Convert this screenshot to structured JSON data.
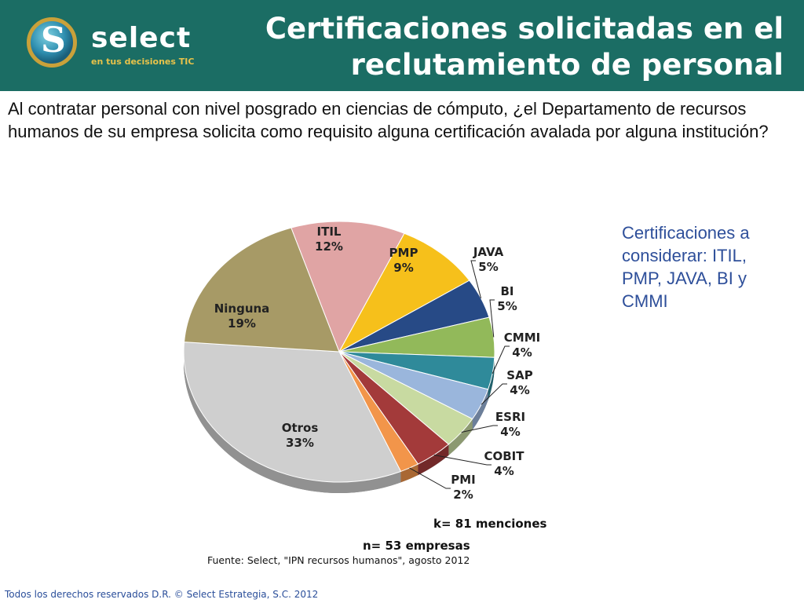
{
  "header": {
    "logo_word": "select",
    "logo_tag": "en tus decisiones",
    "logo_tag_accent": "TIC",
    "title_line1": "Certificaciones solicitadas en el",
    "title_line2": "reclutamiento de personal"
  },
  "question": "Al contratar personal con nivel posgrado en ciencias de cómputo, ¿el Departamento de recursos humanos de su empresa solicita como requisito alguna certificación avalada por alguna institución?",
  "side_note": "Certificaciones a considerar: ITIL, PMP, JAVA, BI y CMMI",
  "k_note": "k= 81 menciones",
  "n_note": "n= 53 empresas",
  "source": "Fuente: Select, \"IPN recursos humanos\", agosto 2012",
  "footer": "Todos los derechos reservados D.R. © Select Estrategia, S.C. 2012",
  "colors": {
    "header_bg": "#1b6d64",
    "side_note": "#2e4f9a"
  },
  "chart_data": {
    "type": "pie",
    "title": "",
    "slices": [
      {
        "label": "ITIL",
        "value": 12,
        "display": "12%",
        "color": "#e0a4a4"
      },
      {
        "label": "PMP",
        "value": 9,
        "display": "9%",
        "color": "#f6c01b"
      },
      {
        "label": "JAVA",
        "value": 5,
        "display": "5%",
        "color": "#274a86"
      },
      {
        "label": "BI",
        "value": 5,
        "display": "5%",
        "color": "#92b95a"
      },
      {
        "label": "CMMI",
        "value": 4,
        "display": "4%",
        "color": "#2f8a9a"
      },
      {
        "label": "SAP",
        "value": 4,
        "display": "4%",
        "color": "#9ab6dc"
      },
      {
        "label": "ESRI",
        "value": 4,
        "display": "4%",
        "color": "#c8daa1"
      },
      {
        "label": "COBIT",
        "value": 4,
        "display": "4%",
        "color": "#a33a3a"
      },
      {
        "label": "PMI",
        "value": 2,
        "display": "2%",
        "color": "#f2954a"
      },
      {
        "label": "Otros",
        "value": 33,
        "display": "33%",
        "color": "#cfcfcf"
      },
      {
        "label": "Ninguna",
        "value": 19,
        "display": "19%",
        "color": "#a79a66"
      }
    ]
  }
}
